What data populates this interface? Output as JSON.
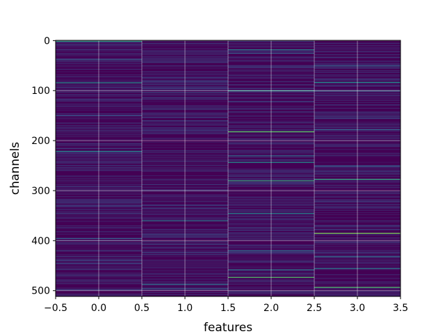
{
  "chart_data": {
    "type": "heatmap",
    "title": "",
    "xlabel": "features",
    "ylabel": "channels",
    "xlim": [
      -0.5,
      3.5
    ],
    "ylim": [
      511.5,
      -0.5
    ],
    "x_ticks": [
      "−0.5",
      "0.0",
      "0.5",
      "1.0",
      "1.5",
      "2.0",
      "2.5",
      "3.0",
      "3.5"
    ],
    "y_ticks": [
      "0",
      "100",
      "200",
      "300",
      "400",
      "500"
    ],
    "grid": true,
    "colormap": "viridis",
    "n_features": 4,
    "n_channels": 512,
    "base_color": "#440154",
    "highlights": [
      [
        {
          "channel": 1,
          "level": 0.55
        },
        {
          "channel": 38,
          "level": 0.3
        },
        {
          "channel": 84,
          "level": 0.5
        },
        {
          "channel": 150,
          "level": 0.25
        },
        {
          "channel": 221,
          "level": 0.45
        },
        {
          "channel": 330,
          "level": 0.2
        },
        {
          "channel": 395,
          "level": 0.3
        },
        {
          "channel": 445,
          "level": 0.2
        },
        {
          "channel": 498,
          "level": 0.25
        }
      ],
      [
        {
          "channel": 95,
          "level": 0.25
        },
        {
          "channel": 160,
          "level": 0.2
        },
        {
          "channel": 300,
          "level": 0.2
        },
        {
          "channel": 360,
          "level": 0.4
        },
        {
          "channel": 487,
          "level": 0.35
        },
        {
          "channel": 496,
          "level": 0.3
        }
      ],
      [
        {
          "channel": 18,
          "level": 0.45
        },
        {
          "channel": 25,
          "level": 0.3
        },
        {
          "channel": 100,
          "level": 0.55
        },
        {
          "channel": 182,
          "level": 0.75
        },
        {
          "channel": 230,
          "level": 0.35
        },
        {
          "channel": 243,
          "level": 0.5
        },
        {
          "channel": 280,
          "level": 0.6
        },
        {
          "channel": 345,
          "level": 0.45
        },
        {
          "channel": 420,
          "level": 0.35
        },
        {
          "channel": 458,
          "level": 0.4
        },
        {
          "channel": 473,
          "level": 0.7
        }
      ],
      [
        {
          "channel": 50,
          "level": 0.3
        },
        {
          "channel": 83,
          "level": 0.5
        },
        {
          "channel": 100,
          "level": 0.35
        },
        {
          "channel": 178,
          "level": 0.3
        },
        {
          "channel": 250,
          "level": 0.3
        },
        {
          "channel": 277,
          "level": 0.6
        },
        {
          "channel": 385,
          "level": 0.8
        },
        {
          "channel": 432,
          "level": 0.35
        },
        {
          "channel": 455,
          "level": 0.4
        },
        {
          "channel": 493,
          "level": 0.7
        }
      ]
    ]
  }
}
